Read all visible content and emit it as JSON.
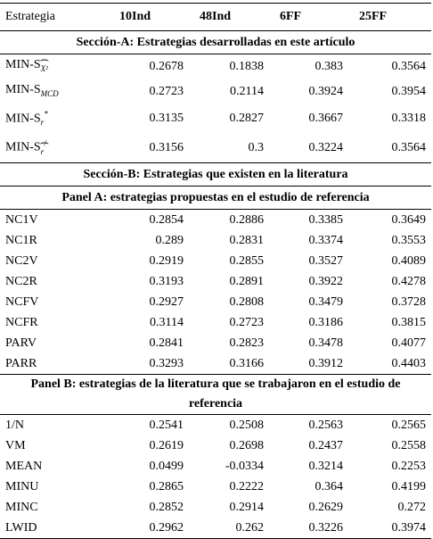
{
  "columns": [
    "Estrategia",
    "10Ind",
    "48Ind",
    "6FF",
    "25FF"
  ],
  "section_a": {
    "title": "Sección-A: Estrategias desarrolladas en este artículo",
    "rows": [
      {
        "label": "MIN-S",
        "values": [
          "0.2678",
          "0.1838",
          "0.383",
          "0.3564"
        ]
      },
      {
        "label": "MIN-S",
        "values": [
          "0.2723",
          "0.2114",
          "0.3924",
          "0.3954"
        ]
      },
      {
        "label": "MIN-S",
        "values": [
          "0.3135",
          "0.2827",
          "0.3667",
          "0.3318"
        ]
      },
      {
        "label": "MIN-S",
        "values": [
          "0.3156",
          "0.3",
          "0.3224",
          "0.3564"
        ]
      }
    ]
  },
  "section_b": {
    "title": "Sección-B: Estrategias que existen en la literatura"
  },
  "panel_a": {
    "title": "Panel A: estrategias propuestas en el estudio de referencia",
    "rows": [
      {
        "label": "NC1V",
        "values": [
          "0.2854",
          "0.2886",
          "0.3385",
          "0.3649"
        ]
      },
      {
        "label": "NC1R",
        "values": [
          "0.289",
          "0.2831",
          "0.3374",
          "0.3553"
        ]
      },
      {
        "label": "NC2V",
        "values": [
          "0.2919",
          "0.2855",
          "0.3527",
          "0.4089"
        ]
      },
      {
        "label": "NC2R",
        "values": [
          "0.3193",
          "0.2891",
          "0.3922",
          "0.4278"
        ]
      },
      {
        "label": "NCFV",
        "values": [
          "0.2927",
          "0.2808",
          "0.3479",
          "0.3728"
        ]
      },
      {
        "label": "NCFR",
        "values": [
          "0.3114",
          "0.2723",
          "0.3186",
          "0.3815"
        ]
      },
      {
        "label": "PARV",
        "values": [
          "0.2841",
          "0.2823",
          "0.3478",
          "0.4077"
        ]
      },
      {
        "label": "PARR",
        "values": [
          "0.3293",
          "0.3166",
          "0.3912",
          "0.4403"
        ]
      }
    ]
  },
  "panel_b": {
    "title": "Panel B: estrategias de la literatura que se trabajaron en el estudio de referencia",
    "rows": [
      {
        "label": "1/N",
        "values": [
          "0.2541",
          "0.2508",
          "0.2563",
          "0.2565"
        ]
      },
      {
        "label": "VM",
        "values": [
          "0.2619",
          "0.2698",
          "0.2437",
          "0.2558"
        ]
      },
      {
        "label": "MEAN",
        "values": [
          "0.0499",
          "-0.0334",
          "0.3214",
          "0.2253"
        ]
      },
      {
        "label": "MINU",
        "values": [
          "0.2865",
          "0.2222",
          "0.364",
          "0.4199"
        ]
      },
      {
        "label": "MINC",
        "values": [
          "0.2852",
          "0.2914",
          "0.2629",
          "0.272"
        ]
      },
      {
        "label": "LWID",
        "values": [
          "0.2962",
          "0.262",
          "0.3226",
          "0.3974"
        ]
      }
    ]
  }
}
